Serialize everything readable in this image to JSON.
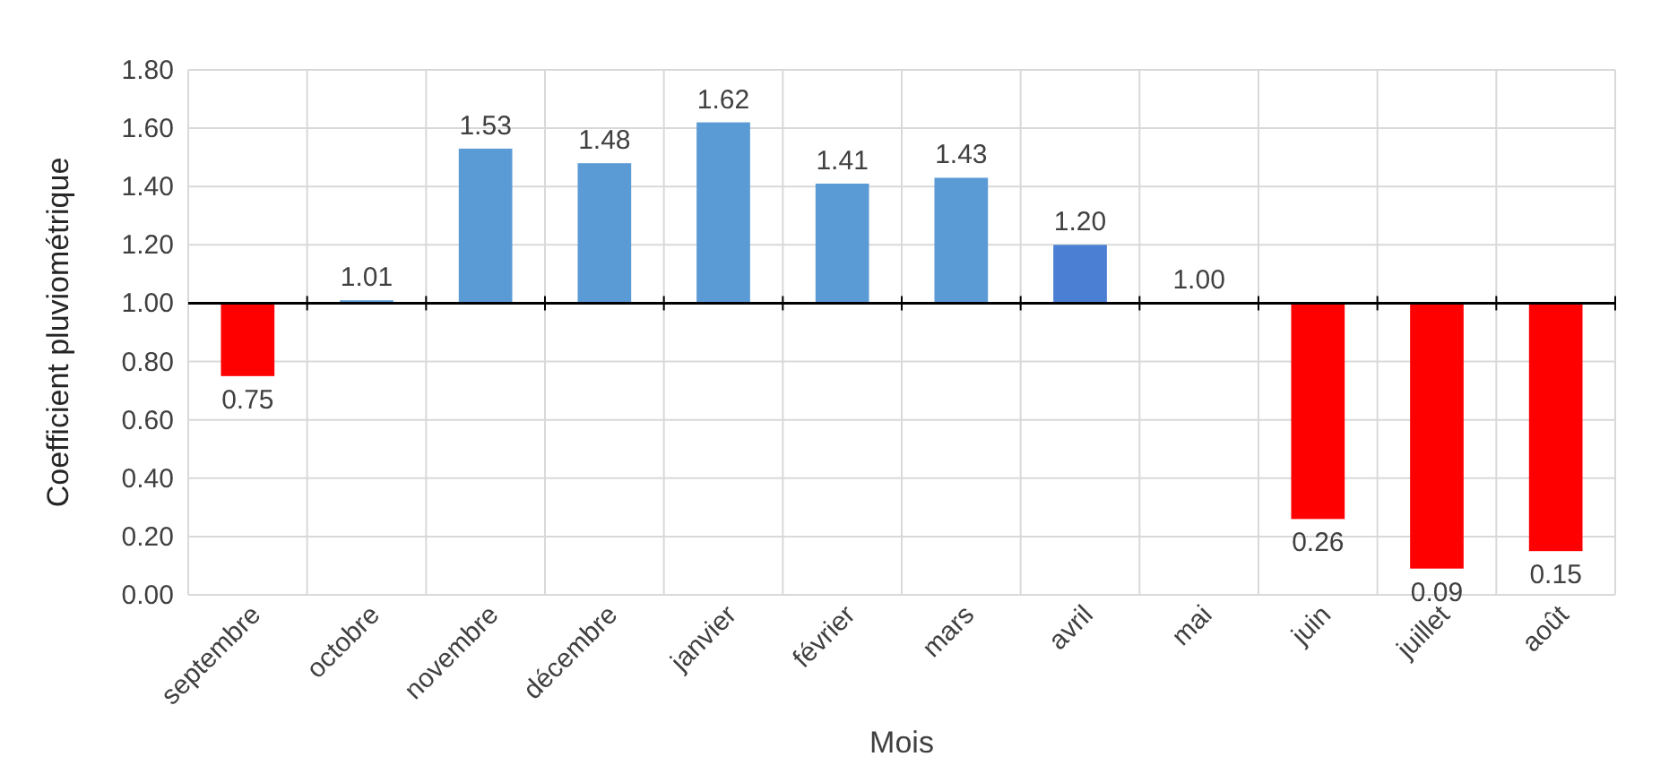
{
  "chart_data": {
    "type": "bar",
    "xlabel": "Mois",
    "ylabel": "Coefficient pluviométrique",
    "categories": [
      "septembre",
      "octobre",
      "novembre",
      "décembre",
      "janvier",
      "février",
      "mars",
      "avril",
      "mai",
      "juin",
      "juillet",
      "août"
    ],
    "base": [
      1,
      1,
      1,
      1,
      1,
      1,
      1,
      1,
      1,
      1,
      1,
      1
    ],
    "values": [
      -0.25,
      0.01,
      0.53,
      0.48,
      0.62,
      0.41,
      0.43,
      0.2,
      0,
      -0.74,
      -0.91,
      -0.85
    ],
    "value_labels": [
      "0.75",
      "1.01",
      "1.53",
      "1.48",
      "1.62",
      "1.41",
      "1.43",
      "1.20",
      "1.00",
      "0.26",
      "0.09",
      "0.15"
    ],
    "colors": [
      "#ff0000",
      "#5b9bd5",
      "#5b9bd5",
      "#5b9bd5",
      "#5b9bd5",
      "#5b9bd5",
      "#5b9bd5",
      "#4a7fd4",
      "#5b9bd5",
      "#ff0000",
      "#ff0000",
      "#ff0000"
    ],
    "ylim": [
      0,
      1.8
    ],
    "yticks": [
      {
        "value": 0,
        "label": "0.00"
      },
      {
        "value": 0.2,
        "label": "0.20"
      },
      {
        "value": 0.4,
        "label": "0.40"
      },
      {
        "value": 0.6,
        "label": "0.60"
      },
      {
        "value": 0.8,
        "label": "0.80"
      },
      {
        "value": 1,
        "label": "1.00"
      },
      {
        "value": 1.2,
        "label": "1.20"
      },
      {
        "value": 1.4,
        "label": "1.40"
      },
      {
        "value": 1.6,
        "label": "1.60"
      },
      {
        "value": 1.8,
        "label": "1.80"
      }
    ],
    "ref_lines": [
      {
        "axis": "y",
        "value": 1,
        "color": "#000000"
      }
    ],
    "grid": true
  }
}
